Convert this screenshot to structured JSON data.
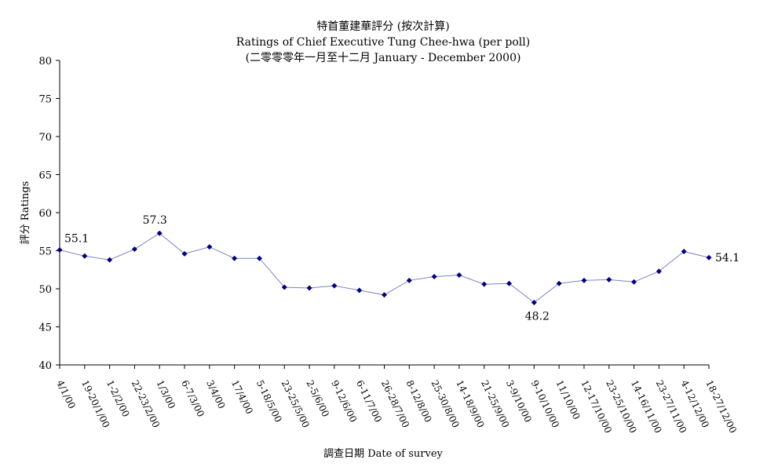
{
  "chart_data": {
    "type": "line",
    "title": "特首董建華評分 (按次計算)",
    "subtitle": "Ratings of Chief Executive Tung Chee-hwa (per poll)",
    "subtitle2": "(二零零零年一月至十二月 January - December 2000)",
    "xlabel": "調查日期 Date of survey",
    "ylabel": "評分 Ratings",
    "ylim": [
      40,
      80
    ],
    "yticks": [
      40,
      45,
      50,
      55,
      60,
      65,
      70,
      75,
      80
    ],
    "grid": false,
    "legend": "none",
    "series_color": "#8080c0",
    "marker_color": "#000080",
    "categories": [
      "4/1/00",
      "19-20/1/00",
      "1-2/2/00",
      "22-23/2/00",
      "1/3/00",
      "6-7/3/00",
      "3/4/00",
      "17/4/00",
      "5-18/5/00",
      "23-25/5/00",
      "2-5/6/00",
      "9-12/6/00",
      "6-11/7/00",
      "26-28/7/00",
      "8-12/8/00",
      "25-30/8/00",
      "14-18/9/00",
      "21-25/9/00",
      "3-9/10/00",
      "9-10/10/00",
      "11/10/00",
      "12-17/10/00",
      "23-25/10/00",
      "14-16/11/00",
      "23-27/11/00",
      "4-12/12/00",
      "18-27/12/00"
    ],
    "values": [
      55.1,
      54.3,
      53.8,
      55.2,
      57.3,
      54.6,
      55.5,
      54.0,
      54.0,
      50.2,
      50.1,
      50.4,
      49.8,
      49.2,
      51.1,
      51.6,
      51.8,
      50.6,
      50.7,
      48.2,
      50.7,
      51.1,
      51.2,
      50.9,
      52.3,
      54.9,
      54.1
    ],
    "data_labels": [
      {
        "index": 0,
        "text": "55.1"
      },
      {
        "index": 4,
        "text": "57.3"
      },
      {
        "index": 19,
        "text": "48.2"
      },
      {
        "index": 26,
        "text": "54.1"
      }
    ]
  }
}
